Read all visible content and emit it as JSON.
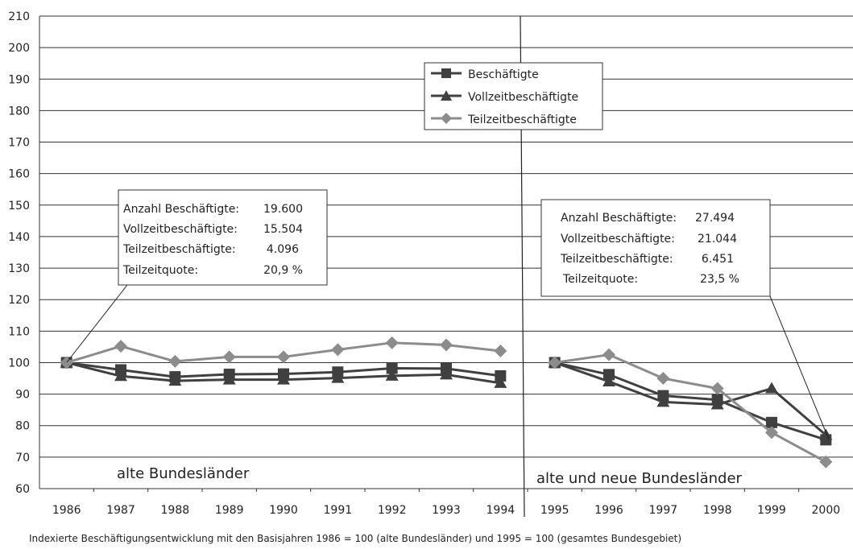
{
  "chart_data": {
    "type": "line",
    "ylim": [
      60,
      210
    ],
    "yticks": [
      60,
      70,
      80,
      90,
      100,
      110,
      120,
      130,
      140,
      150,
      160,
      170,
      180,
      190,
      200,
      210
    ],
    "categories": [
      "1986",
      "1987",
      "1988",
      "1989",
      "1990",
      "1991",
      "1992",
      "1993",
      "1994",
      "1995",
      "1996",
      "1997",
      "1998",
      "1999",
      "2000"
    ],
    "grid": true,
    "legend_position": "top-center",
    "series": [
      {
        "name": "Beschäftigte",
        "marker": "square",
        "color": "#404040",
        "segments": [
          [
            100,
            97.7,
            95.5,
            96.3,
            96.4,
            97.0,
            98.2,
            98.1,
            95.8
          ],
          [
            100,
            96.2,
            89.5,
            88.2,
            81.0,
            75.5
          ]
        ]
      },
      {
        "name": "Vollzeitbeschäftigte",
        "marker": "triangle",
        "color": "#404040",
        "segments": [
          [
            100,
            95.7,
            94.2,
            94.6,
            94.6,
            95.1,
            95.8,
            96.2,
            93.5
          ],
          [
            100,
            94.0,
            87.5,
            86.7,
            91.8,
            77.0
          ]
        ]
      },
      {
        "name": "Teilzeitbeschäftigte",
        "marker": "diamond",
        "color": "#8c8c8c",
        "segments": [
          [
            100,
            105.2,
            100.4,
            101.8,
            101.8,
            104.1,
            106.3,
            105.6,
            103.7
          ],
          [
            100,
            102.5,
            95.0,
            91.8,
            77.8,
            68.5
          ]
        ]
      }
    ],
    "annotations": {
      "left": {
        "lines": [
          [
            "Anzahl Beschäftigte:",
            "19.600"
          ],
          [
            "Vollzeitbeschäftigte:",
            "15.504"
          ],
          [
            "Teilzeitbeschäftigte:",
            "4.096"
          ],
          [
            "Teilzeitquote:",
            "20,9 %"
          ]
        ]
      },
      "right": {
        "lines": [
          [
            "Anzahl Beschäftigte:",
            "27.494"
          ],
          [
            "Vollzeitbeschäftigte:",
            "21.044"
          ],
          [
            "Teilzeitbeschäftigte:",
            "6.451"
          ],
          [
            "Teilzeitquote:",
            "23,5 %"
          ]
        ]
      }
    },
    "region_labels": {
      "left": "alte Bundesländer",
      "right": "alte und neue Bundesländer"
    },
    "caption": "Indexierte Beschäftigungsentwicklung mit den Basisjahren 1986 = 100 (alte Bundesländer) und 1995 = 100 (gesamtes Bundesgebiet)"
  }
}
